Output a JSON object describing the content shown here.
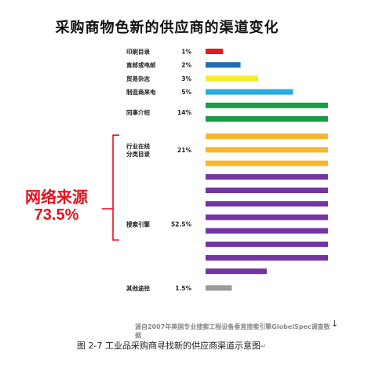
{
  "chart_data": {
    "type": "bar",
    "title": "采购商物色新的供应商的渠道变化",
    "xlabel": "",
    "ylabel": "",
    "unit": "%",
    "categories": [
      "印刷目录",
      "直邮或电邮",
      "贸易杂志",
      "制造商来电",
      "同事介绍",
      "行业在线\n分类目录",
      "搜索引擎",
      "其他途径"
    ],
    "value_labels": [
      "1%",
      "2%",
      "3%",
      "5%",
      "14%",
      "21%",
      "52.5%",
      "1.5%"
    ],
    "values": [
      1,
      2,
      3,
      5,
      14,
      21,
      52.5,
      1.5
    ],
    "bar_colors": [
      "#e11b22",
      "#1f6db3",
      "#f4ec2c",
      "#29abe2",
      "#1a9b48",
      "#f8b62b",
      "#7435a3",
      "#9b9b9b"
    ],
    "scale_note": "each full bar = 7%",
    "bar_unit_value": 7,
    "highlight": {
      "label": "网络来源",
      "value": "73.5%",
      "color": "#e8101c",
      "covers": [
        "行业在线\n分类目录",
        "搜索引擎"
      ]
    },
    "source_note": "源自2007年美国专业搜索工程设备垂直搜索引擎GlobelSpec调查数据"
  },
  "caption": {
    "text": "图 2-7  工业品采购商寻找新的供应商渠道示意图",
    "mark": "↵"
  },
  "cursor_mark": "↓"
}
